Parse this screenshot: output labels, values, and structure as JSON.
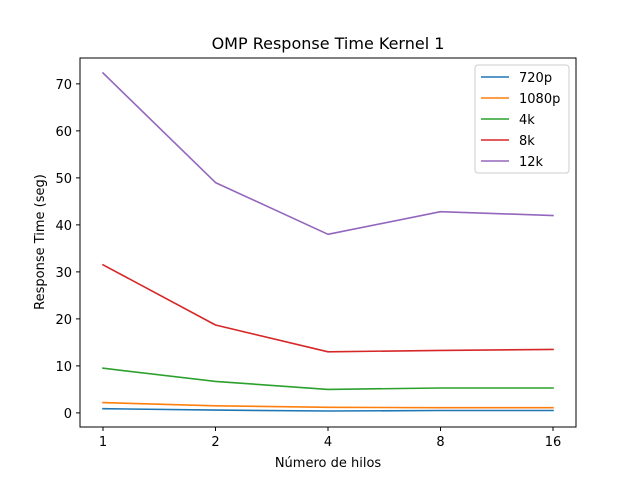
{
  "chart_data": {
    "type": "line",
    "title": "OMP Response Time Kernel 1",
    "xlabel": "Número de hilos",
    "ylabel": "Response Time (seg)",
    "x": [
      1,
      2,
      4,
      8,
      16
    ],
    "x_tick_labels": [
      "1",
      "2",
      "4",
      "8",
      "16"
    ],
    "x_scale": "log2",
    "ylim": [
      -3,
      75.5
    ],
    "y_ticks": [
      0,
      10,
      20,
      30,
      40,
      50,
      60,
      70
    ],
    "grid": false,
    "legend_position": "top-right",
    "series": [
      {
        "name": "720p",
        "color": "#1f77b4",
        "values": [
          0.9,
          0.6,
          0.4,
          0.5,
          0.5
        ]
      },
      {
        "name": "1080p",
        "color": "#ff7f0e",
        "values": [
          2.2,
          1.5,
          1.2,
          1.1,
          1.1
        ]
      },
      {
        "name": "4k",
        "color": "#2ca02c",
        "values": [
          9.5,
          6.7,
          5.0,
          5.3,
          5.3
        ]
      },
      {
        "name": "8k",
        "color": "#d62728",
        "values": [
          31.5,
          18.7,
          13.0,
          13.3,
          13.5
        ]
      },
      {
        "name": "12k",
        "color": "#9467bd",
        "values": [
          72.3,
          49.0,
          38.0,
          42.8,
          42.0
        ]
      }
    ]
  }
}
